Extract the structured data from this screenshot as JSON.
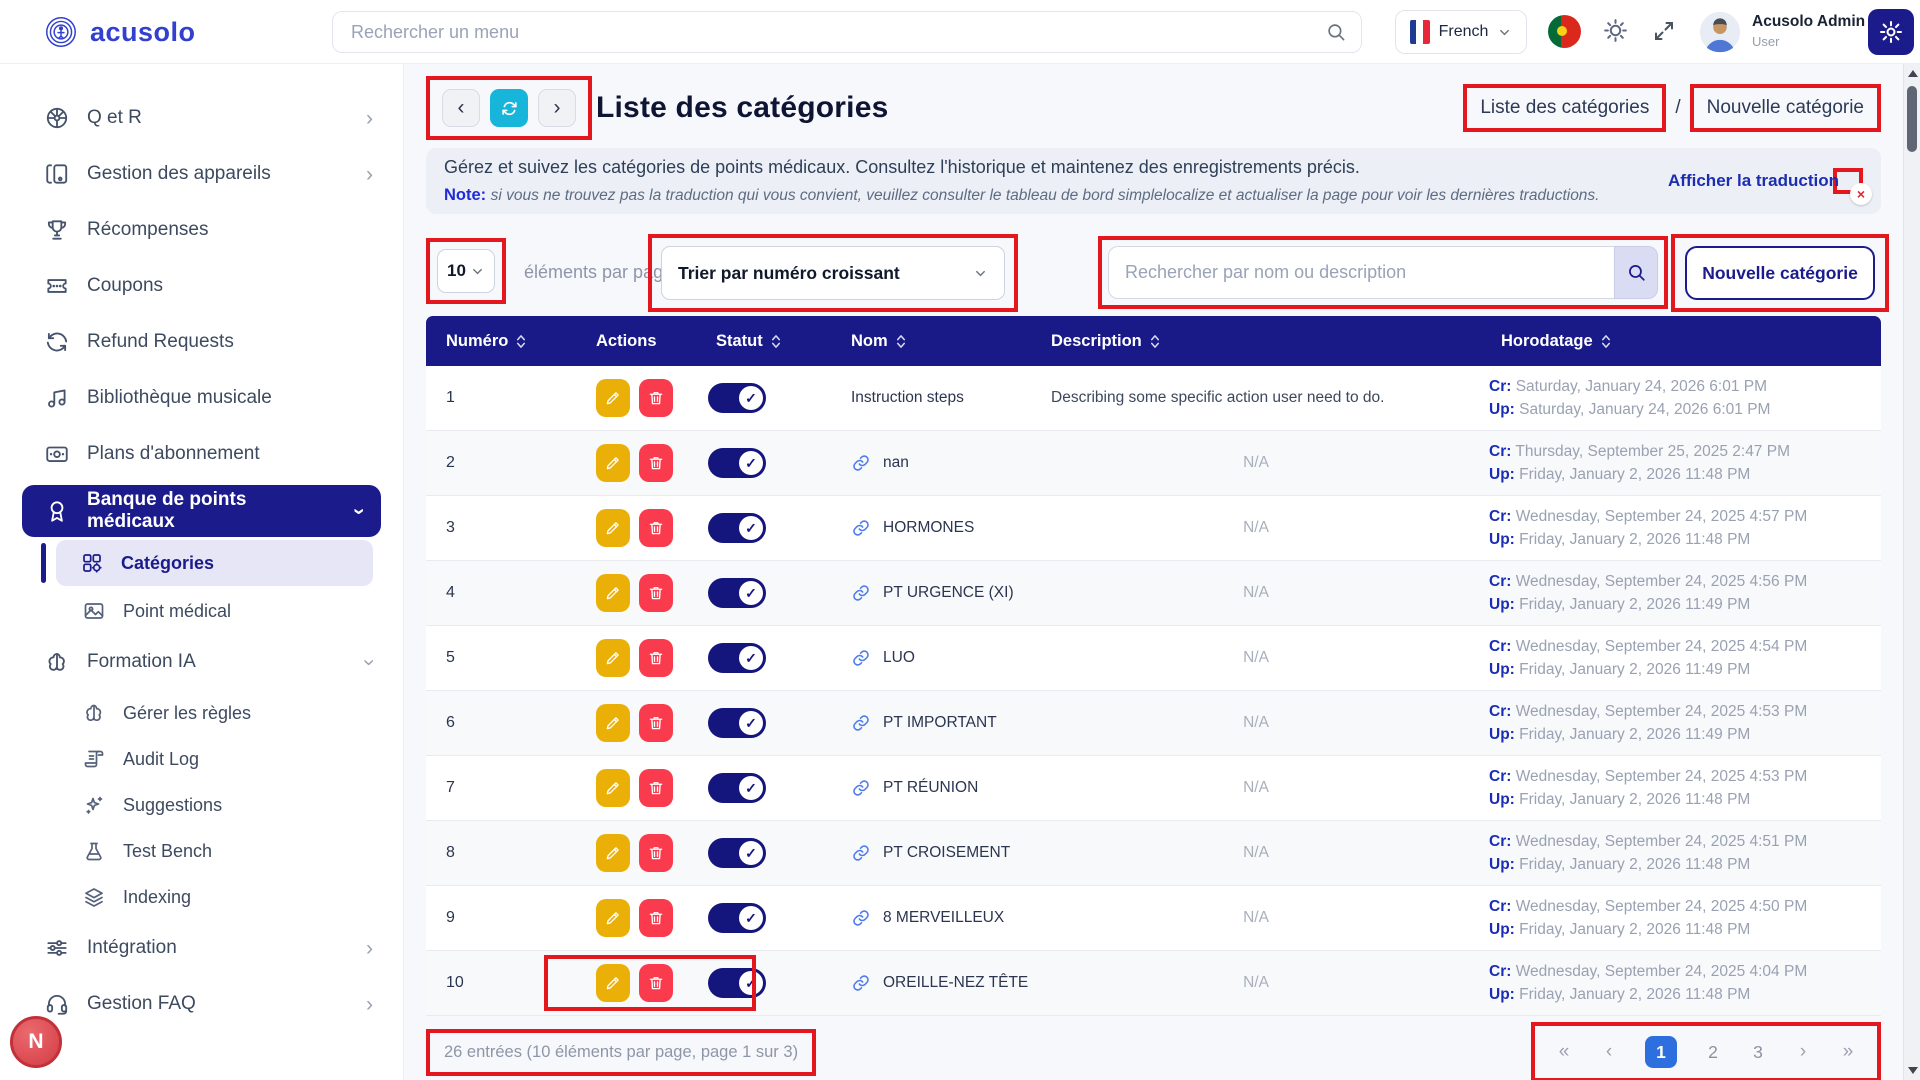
{
  "icons": {
    "chevron_left": "‹",
    "chevron_right": "›",
    "close": "×",
    "check": "✓"
  },
  "header": {
    "logo_text": "acusolo",
    "search_placeholder": "Rechercher un menu",
    "language_label": "French",
    "user_name": "Acusolo Admin",
    "user_role": "User"
  },
  "sidebar": {
    "badge": "N",
    "items": [
      {
        "label": "Q et R",
        "icon": "wheel",
        "chevron_right": true
      },
      {
        "label": "Gestion des appareils",
        "icon": "devices",
        "chevron_right": true
      },
      {
        "label": "Récompenses",
        "icon": "trophy"
      },
      {
        "label": "Coupons",
        "icon": "ticket"
      },
      {
        "label": "Refund Requests",
        "icon": "refund"
      },
      {
        "label": "Bibliothèque musicale",
        "icon": "music"
      },
      {
        "label": "Plans d'abonnement",
        "icon": "card"
      },
      {
        "label": "Banque de points médicaux",
        "icon": "award",
        "chevron_down": true,
        "active": true
      },
      {
        "label": "Catégories",
        "icon": "category",
        "sub": true,
        "active_sub": true
      },
      {
        "label": "Point médical",
        "icon": "image",
        "sub": true
      },
      {
        "label": "Formation IA",
        "icon": "brain",
        "chevron_down": true
      },
      {
        "label": "Gérer les règles",
        "icon": "brain",
        "sub": true
      },
      {
        "label": "Audit Log",
        "icon": "scroll",
        "sub": true
      },
      {
        "label": "Suggestions",
        "icon": "sparkles",
        "sub": true
      },
      {
        "label": "Test Bench",
        "icon": "flask",
        "sub": true
      },
      {
        "label": "Indexing",
        "icon": "layers",
        "sub": true
      },
      {
        "label": "Intégration",
        "icon": "sliders",
        "chevron_right": true
      },
      {
        "label": "Gestion FAQ",
        "icon": "headset",
        "chevron_right": true
      }
    ]
  },
  "page": {
    "title": "Liste des catégories",
    "breadcrumb_current": "Liste des catégories",
    "breadcrumb_sep": "/",
    "breadcrumb_next": "Nouvelle catégorie",
    "description": "Gérez et suivez les catégories de points médicaux. Consultez l'historique et maintenez des enregistrements précis.",
    "note_label": "Note:",
    "note_text": "si vous ne trouvez pas la traduction qui vous convient, veuillez consulter le tableau de bord simplelocalize et actualiser la page pour voir les dernières traductions.",
    "translation_toggle_label": "Afficher la traduction",
    "per_page_value": "10",
    "per_page_label": "éléments par page",
    "sort_value": "Trier par numéro croissant",
    "search_placeholder": "Rechercher par nom ou description",
    "new_category_label": "Nouvelle catégorie"
  },
  "table": {
    "columns": [
      {
        "label": "Numéro",
        "sortable": true
      },
      {
        "label": "Actions",
        "sortable": false
      },
      {
        "label": "Statut",
        "sortable": true
      },
      {
        "label": "Nom",
        "sortable": true
      },
      {
        "label": "Description",
        "sortable": true
      },
      {
        "label": "Horodatage",
        "sortable": true
      }
    ],
    "cr_label": "Cr:",
    "up_label": "Up:",
    "rows": [
      {
        "num": "1",
        "link": false,
        "name": "Instruction steps",
        "desc": "Describing some specific action user need to do.",
        "na": false,
        "cr": "Saturday, January 24, 2026 6:01 PM",
        "up": "Saturday, January 24, 2026 6:01 PM"
      },
      {
        "num": "2",
        "link": true,
        "name": "nan",
        "desc": "N/A",
        "na": true,
        "cr": "Thursday, September 25, 2025 2:47 PM",
        "up": "Friday, January 2, 2026 11:48 PM"
      },
      {
        "num": "3",
        "link": true,
        "name": "HORMONES",
        "desc": "N/A",
        "na": true,
        "cr": "Wednesday, September 24, 2025 4:57 PM",
        "up": "Friday, January 2, 2026 11:48 PM"
      },
      {
        "num": "4",
        "link": true,
        "name": "PT URGENCE (XI)",
        "desc": "N/A",
        "na": true,
        "cr": "Wednesday, September 24, 2025 4:56 PM",
        "up": "Friday, January 2, 2026 11:49 PM"
      },
      {
        "num": "5",
        "link": true,
        "name": "LUO",
        "desc": "N/A",
        "na": true,
        "cr": "Wednesday, September 24, 2025 4:54 PM",
        "up": "Friday, January 2, 2026 11:49 PM"
      },
      {
        "num": "6",
        "link": true,
        "name": "PT IMPORTANT",
        "desc": "N/A",
        "na": true,
        "cr": "Wednesday, September 24, 2025 4:53 PM",
        "up": "Friday, January 2, 2026 11:49 PM"
      },
      {
        "num": "7",
        "link": true,
        "name": "PT RÉUNION",
        "desc": "N/A",
        "na": true,
        "cr": "Wednesday, September 24, 2025 4:53 PM",
        "up": "Friday, January 2, 2026 11:48 PM"
      },
      {
        "num": "8",
        "link": true,
        "name": "PT CROISEMENT",
        "desc": "N/A",
        "na": true,
        "cr": "Wednesday, September 24, 2025 4:51 PM",
        "up": "Friday, January 2, 2026 11:48 PM"
      },
      {
        "num": "9",
        "link": true,
        "name": "8 MERVEILLEUX",
        "desc": "N/A",
        "na": true,
        "cr": "Wednesday, September 24, 2025 4:50 PM",
        "up": "Friday, January 2, 2026 11:48 PM"
      },
      {
        "num": "10",
        "link": true,
        "name": "OREILLE-NEZ TÊTE",
        "desc": "N/A",
        "na": true,
        "cr": "Wednesday, September 24, 2025 4:04 PM",
        "up": "Friday, January 2, 2026 11:48 PM",
        "annotate": true
      }
    ]
  },
  "footer": {
    "summary": "26 entrées (10 éléments par page, page 1 sur 3)",
    "first": "«",
    "prev": "‹",
    "next": "›",
    "last": "»",
    "pages": [
      {
        "label": "1",
        "active": true
      },
      {
        "label": "2"
      },
      {
        "label": "3"
      }
    ]
  }
}
